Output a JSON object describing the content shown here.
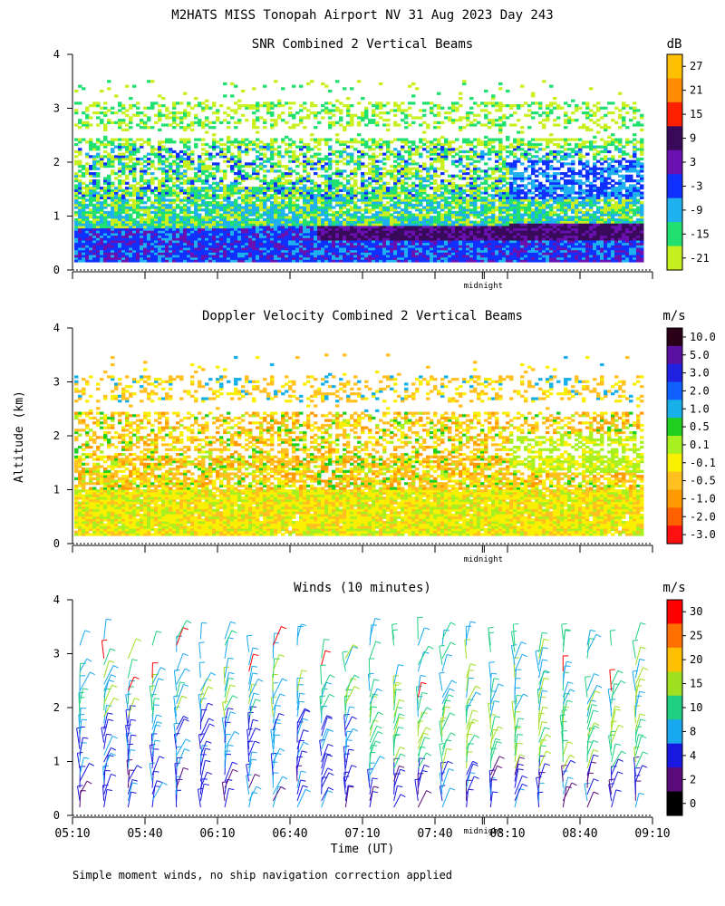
{
  "page": {
    "title": "M2HATS MISS Tonopah Airport NV  31 Aug 2023 Day 243",
    "ylabel": "Altitude (km)",
    "xlabel": "Time (UT)",
    "footer": "Simple moment winds, no ship navigation correction applied",
    "midnight_label": "midnight"
  },
  "time_axis": {
    "range": [
      "05:10",
      "09:10"
    ],
    "tick_labels": [
      "05:10",
      "05:40",
      "06:10",
      "06:40",
      "07:10",
      "07:40",
      "08:10",
      "08:40",
      "09:10"
    ],
    "midnight_at": "08:00"
  },
  "chart_data": [
    {
      "type": "heatmap",
      "title": "SNR Combined 2 Vertical Beams",
      "unit": "dB",
      "ylim": [
        0,
        4
      ],
      "y_ticks": [
        0,
        1,
        2,
        3,
        4
      ],
      "colorbar": {
        "labels": [
          "27",
          "21",
          "15",
          "9",
          "3",
          "-3",
          "-9",
          "-15",
          "-21"
        ],
        "colors": [
          "#ffc000",
          "#ff8c00",
          "#ff2000",
          "#3a0a5a",
          "#6a10b0",
          "#1030ff",
          "#1fb0f0",
          "#20e070",
          "#c8f020"
        ]
      },
      "bands": [
        {
          "desc": "low strong layer",
          "y_range_km": [
            0.2,
            0.9
          ],
          "dominant_dB": "-3 to 9"
        },
        {
          "desc": "mid scatter layer",
          "y_range_km": [
            0.9,
            2.4
          ],
          "dominant_dB": "-21 to -3"
        },
        {
          "desc": "upper sparse layer",
          "y_range_km": [
            2.4,
            3.2
          ],
          "dominant_dB": "-21 to -15"
        }
      ]
    },
    {
      "type": "heatmap",
      "title": "Doppler Velocity Combined 2 Vertical Beams",
      "unit": "m/s",
      "ylim": [
        0,
        4
      ],
      "y_ticks": [
        0,
        1,
        2,
        3,
        4
      ],
      "colorbar": {
        "labels": [
          "10.0",
          "5.0",
          "3.0",
          "2.0",
          "1.0",
          "0.5",
          "0.1",
          "-0.1",
          "-0.5",
          "-1.0",
          "-2.0",
          "-3.0"
        ],
        "colors": [
          "#2a0018",
          "#5a10a0",
          "#2020e0",
          "#1060ff",
          "#18b0e8",
          "#20d020",
          "#a8f020",
          "#f8f000",
          "#ffc020",
          "#ff9a00",
          "#ff6000",
          "#ff1010"
        ]
      },
      "bands": [
        {
          "desc": "near-surface",
          "y_range_km": [
            0.1,
            1.0
          ],
          "dominant_ms": "-0.5 to 0.1"
        },
        {
          "desc": "mid layer",
          "y_range_km": [
            1.0,
            2.4
          ],
          "dominant_ms": "-1.0 to 0.1"
        },
        {
          "desc": "upper sparse",
          "y_range_km": [
            2.4,
            3.1
          ],
          "dominant_ms": "-0.5 to 0.5"
        }
      ]
    },
    {
      "type": "scatter",
      "title": "Winds (10 minutes)",
      "unit": "m/s",
      "ylim": [
        0,
        4
      ],
      "y_ticks": [
        0,
        1,
        2,
        3,
        4
      ],
      "colorbar": {
        "labels": [
          "30",
          "25",
          "20",
          "15",
          "10",
          "8",
          "4",
          "2",
          "0"
        ],
        "colors": [
          "#ff0000",
          "#ff7000",
          "#ffc000",
          "#a0e020",
          "#20d080",
          "#18a8f0",
          "#1818e0",
          "#5a0a7a",
          "#000000"
        ]
      },
      "x_times": [
        "05:10",
        "05:20",
        "05:30",
        "05:40",
        "05:50",
        "06:00",
        "06:10",
        "06:20",
        "06:30",
        "06:40",
        "06:50",
        "07:00",
        "07:10",
        "07:20",
        "07:30",
        "07:40",
        "07:50",
        "08:00",
        "08:10",
        "08:20",
        "08:30",
        "08:40",
        "08:50",
        "09:00"
      ],
      "barb_levels_km": [
        0.2,
        0.5,
        0.8,
        1.1,
        1.4,
        1.7,
        2.0,
        2.3,
        2.6,
        2.9,
        3.2
      ],
      "typical_speed_ms": {
        "low": "4-10",
        "mid": "8-15",
        "upper": "15-30"
      }
    }
  ]
}
